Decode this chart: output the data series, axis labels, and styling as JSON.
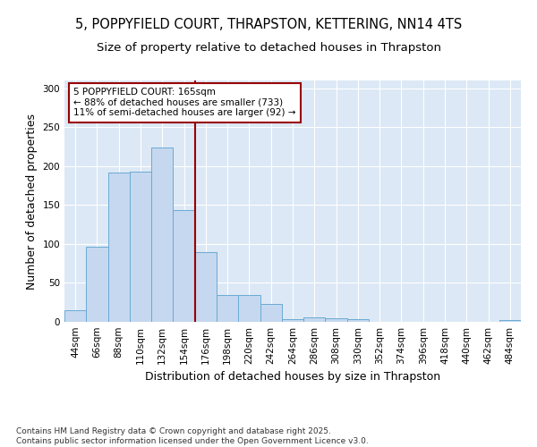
{
  "title_line1": "5, POPPYFIELD COURT, THRAPSTON, KETTERING, NN14 4TS",
  "title_line2": "Size of property relative to detached houses in Thrapston",
  "xlabel": "Distribution of detached houses by size in Thrapston",
  "ylabel": "Number of detached properties",
  "categories": [
    "44sqm",
    "66sqm",
    "88sqm",
    "110sqm",
    "132sqm",
    "154sqm",
    "176sqm",
    "198sqm",
    "220sqm",
    "242sqm",
    "264sqm",
    "286sqm",
    "308sqm",
    "330sqm",
    "352sqm",
    "374sqm",
    "396sqm",
    "418sqm",
    "440sqm",
    "462sqm",
    "484sqm"
  ],
  "values": [
    15,
    97,
    192,
    193,
    224,
    144,
    90,
    35,
    34,
    23,
    4,
    6,
    5,
    4,
    0,
    0,
    0,
    0,
    0,
    0,
    2
  ],
  "bar_color": "#c5d8ef",
  "bar_edge_color": "#6aaad4",
  "bg_color": "#dce8f5",
  "grid_color": "#ffffff",
  "vline_x": 5.5,
  "vline_color": "#990000",
  "annotation_text": "5 POPPYFIELD COURT: 165sqm\n← 88% of detached houses are smaller (733)\n11% of semi-detached houses are larger (92) →",
  "annotation_box_color": "#990000",
  "ylim": [
    0,
    310
  ],
  "yticks": [
    0,
    50,
    100,
    150,
    200,
    250,
    300
  ],
  "footer_text": "Contains HM Land Registry data © Crown copyright and database right 2025.\nContains public sector information licensed under the Open Government Licence v3.0.",
  "title_fontsize": 10.5,
  "subtitle_fontsize": 9.5,
  "axis_label_fontsize": 9,
  "tick_fontsize": 7.5,
  "annotation_fontsize": 7.5,
  "footer_fontsize": 6.5
}
